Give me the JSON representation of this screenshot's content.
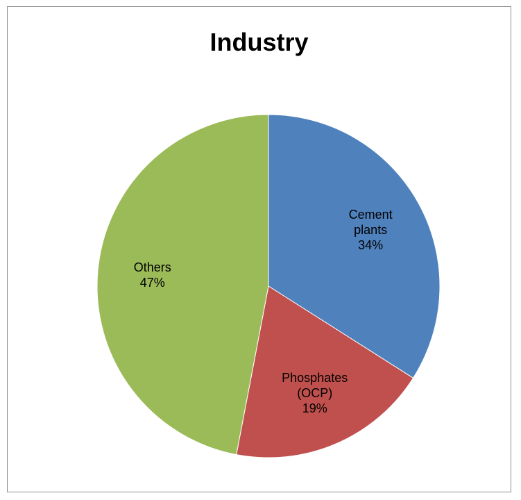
{
  "chart_data": {
    "type": "pie",
    "title": "Industry",
    "slices": [
      {
        "label": [
          "Cement",
          "plants"
        ],
        "percent_label": "34%",
        "value": 34,
        "color": "#4f81bd"
      },
      {
        "label": [
          "Phosphates",
          "(OCP)"
        ],
        "percent_label": "19%",
        "value": 19,
        "color": "#c0504d"
      },
      {
        "label": [
          "Others"
        ],
        "percent_label": "47%",
        "value": 47,
        "color": "#9bbb59"
      }
    ],
    "start_angle_deg": 0,
    "direction": "clockwise",
    "legend": "none"
  }
}
